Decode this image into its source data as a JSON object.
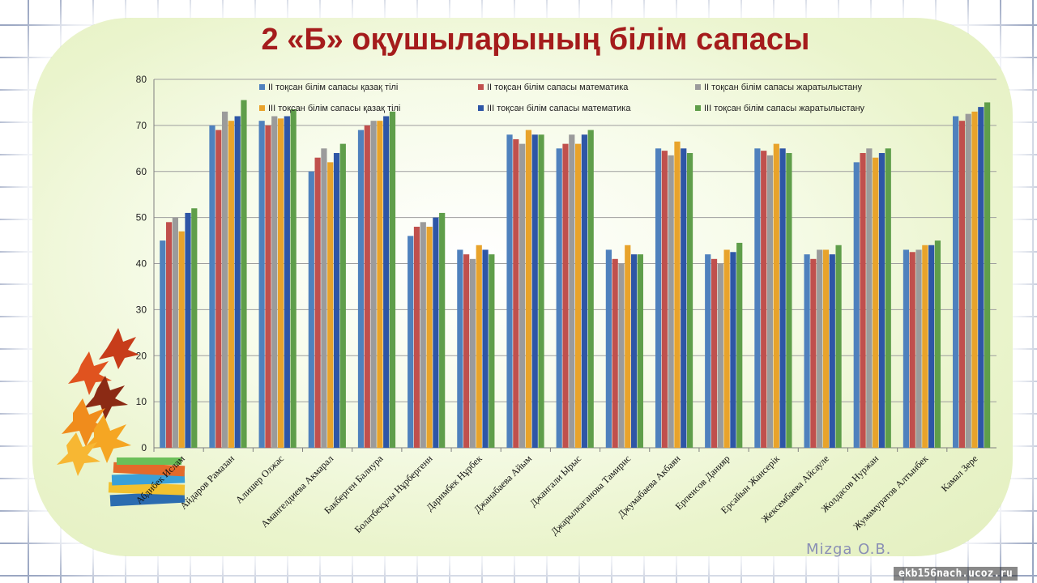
{
  "chart_data": {
    "type": "bar",
    "title": "2 «Б» оқушыларының білім сапасы",
    "ylim": [
      0,
      80
    ],
    "yticks": [
      0,
      10,
      20,
      30,
      40,
      50,
      60,
      70,
      80
    ],
    "grid": true,
    "legend_position": "top",
    "categories": [
      "Абдибек Ислам",
      "Айдаров Рамазан",
      "Алишер Олжас",
      "Амангелдиева  Акмарал",
      "Бакберген Балнура",
      "Болатбекұлы  Нұрбергенн",
      "Даримбек  Нұрбек",
      "Джанабаева Айым",
      "Джангали Ырыс",
      "Джарылкаганова  Тамирис",
      "Джумабаева Акбаян",
      "Ерпеисов Данияр",
      "Ерсайын Жансерік",
      "Жексембаева  Айсауле",
      "Жолдасов Нуржан",
      "Жумамуратов Алтынбек",
      "Камал Зере"
    ],
    "series": [
      {
        "name": "ІІ тоқсан білім сапасы қазақ тілі",
        "color": "#4f81bd",
        "values": [
          45,
          70,
          71,
          60,
          69,
          46,
          43,
          68,
          65,
          43,
          65,
          42,
          65,
          42,
          62,
          43,
          72
        ]
      },
      {
        "name": "ІІ тоқсан білім сапасы математика",
        "color": "#c0504d",
        "values": [
          49,
          69,
          70,
          63,
          70,
          48,
          42,
          67,
          66,
          41,
          64.5,
          41,
          64.5,
          41,
          64,
          42.5,
          71
        ]
      },
      {
        "name": "ІІ тоқсан білім сапасы жаратылыстану",
        "color": "#9b9b9b",
        "values": [
          50,
          73,
          72,
          65,
          71,
          49,
          41,
          66,
          68,
          40,
          63.5,
          40,
          63.5,
          43,
          65,
          43,
          72.5
        ]
      },
      {
        "name": "ІІІ тоқсан білім сапасы қазақ тілі",
        "color": "#e8a32b",
        "values": [
          47,
          71,
          71.5,
          62,
          71,
          48,
          44,
          69,
          66,
          44,
          66.5,
          43,
          66,
          43,
          63,
          44,
          73
        ]
      },
      {
        "name": "ІІІ тоқсан білім сапасы математика",
        "color": "#2e56a6",
        "values": [
          51,
          72,
          72,
          64,
          72,
          50,
          43,
          68,
          68,
          42,
          65,
          42.5,
          65,
          42,
          64,
          44,
          74
        ]
      },
      {
        "name": "ІІІ тоқсан білім сапасы жаратылыстану",
        "color": "#5f9e4a",
        "values": [
          52,
          75.5,
          73.5,
          66,
          73,
          51,
          42,
          68,
          69,
          42,
          64,
          44.5,
          64,
          44,
          65,
          45,
          75
        ]
      }
    ]
  },
  "signature": "Mizga O.B.",
  "site": "ekb156nach.ucoz.ru"
}
